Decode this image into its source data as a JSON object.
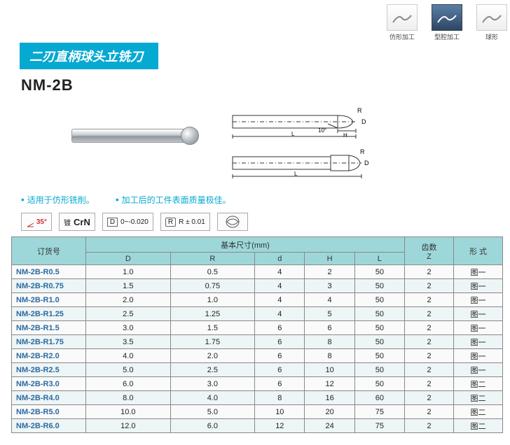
{
  "top_icons": [
    {
      "label": "仿形加工",
      "style": "light"
    },
    {
      "label": "型腔加工",
      "style": "dark"
    },
    {
      "label": "球形",
      "style": "light"
    }
  ],
  "title": "二刃直柄球头立铣刀",
  "model": "NM-2B",
  "diagram_labels": {
    "R": "R",
    "d": "d",
    "D": "D",
    "H": "H",
    "L": "L",
    "angle": "10°"
  },
  "bullets": [
    "适用于仿形铣削。",
    "加工后的工件表面质量极佳。"
  ],
  "badges": {
    "angle": "35°",
    "coating_label": "镀",
    "coating": "CrN",
    "tol_d_label": "D",
    "tol_d": "0~-0.020",
    "tol_r_label": "R",
    "tol_r": "R ± 0.01"
  },
  "table": {
    "header": {
      "order": "订货号",
      "dims": "基本尺寸(mm)",
      "D": "D",
      "R": "R",
      "d": "d",
      "H": "H",
      "L": "L",
      "z": "齿数\nZ",
      "form": "形 式"
    },
    "rows": [
      {
        "order": "NM-2B-R0.5",
        "D": "1.0",
        "R": "0.5",
        "d": "4",
        "H": "2",
        "L": "50",
        "Z": "2",
        "form": "图一"
      },
      {
        "order": "NM-2B-R0.75",
        "D": "1.5",
        "R": "0.75",
        "d": "4",
        "H": "3",
        "L": "50",
        "Z": "2",
        "form": "图一"
      },
      {
        "order": "NM-2B-R1.0",
        "D": "2.0",
        "R": "1.0",
        "d": "4",
        "H": "4",
        "L": "50",
        "Z": "2",
        "form": "图一"
      },
      {
        "order": "NM-2B-R1.25",
        "D": "2.5",
        "R": "1.25",
        "d": "4",
        "H": "5",
        "L": "50",
        "Z": "2",
        "form": "图一"
      },
      {
        "order": "NM-2B-R1.5",
        "D": "3.0",
        "R": "1.5",
        "d": "6",
        "H": "6",
        "L": "50",
        "Z": "2",
        "form": "图一"
      },
      {
        "order": "NM-2B-R1.75",
        "D": "3.5",
        "R": "1.75",
        "d": "6",
        "H": "8",
        "L": "50",
        "Z": "2",
        "form": "图一"
      },
      {
        "order": "NM-2B-R2.0",
        "D": "4.0",
        "R": "2.0",
        "d": "6",
        "H": "8",
        "L": "50",
        "Z": "2",
        "form": "图一"
      },
      {
        "order": "NM-2B-R2.5",
        "D": "5.0",
        "R": "2.5",
        "d": "6",
        "H": "10",
        "L": "50",
        "Z": "2",
        "form": "图一"
      },
      {
        "order": "NM-2B-R3.0",
        "D": "6.0",
        "R": "3.0",
        "d": "6",
        "H": "12",
        "L": "50",
        "Z": "2",
        "form": "图二"
      },
      {
        "order": "NM-2B-R4.0",
        "D": "8.0",
        "R": "4.0",
        "d": "8",
        "H": "16",
        "L": "60",
        "Z": "2",
        "form": "图二"
      },
      {
        "order": "NM-2B-R5.0",
        "D": "10.0",
        "R": "5.0",
        "d": "10",
        "H": "20",
        "L": "75",
        "Z": "2",
        "form": "图二"
      },
      {
        "order": "NM-2B-R6.0",
        "D": "12.0",
        "R": "6.0",
        "d": "12",
        "H": "24",
        "L": "75",
        "Z": "2",
        "form": "图二"
      }
    ]
  },
  "colors": {
    "accent": "#06a9d1",
    "table_head": "#9ed7d9"
  }
}
